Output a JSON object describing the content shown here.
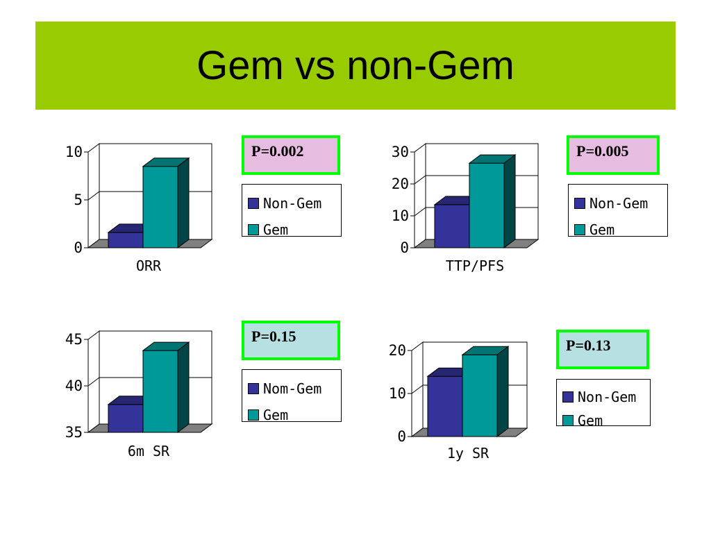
{
  "title": "Gem vs non-Gem",
  "colors": {
    "title_bg": "#99cc00",
    "nongem": "#333399",
    "gem": "#009999",
    "floor": "#808080",
    "p_border": "#00ff00"
  },
  "panels": [
    {
      "p_value": "P=0.002",
      "p_bg": "#e6bde0",
      "legend": [
        "Non-Gem",
        "Gem"
      ]
    },
    {
      "p_value": "P=0.005",
      "p_bg": "#e6bde0",
      "legend": [
        "Non-Gem",
        "Gem"
      ]
    },
    {
      "p_value": "P=0.15",
      "p_bg": "#b7e0e2",
      "legend": [
        "Nom-Gem",
        "Gem"
      ]
    },
    {
      "p_value": "P=0.13",
      "p_bg": "#b7e0e2",
      "legend": [
        "Non-Gem",
        "Gem"
      ]
    }
  ],
  "chart_data": [
    {
      "type": "bar",
      "categories": [
        "ORR"
      ],
      "ylim": [
        0,
        10
      ],
      "yticks": [
        "0",
        "5",
        "10"
      ],
      "series": [
        {
          "name": "Non-Gem",
          "values": [
            1.6
          ]
        },
        {
          "name": "Gem",
          "values": [
            8.5
          ]
        }
      ]
    },
    {
      "type": "bar",
      "categories": [
        "TTP/PFS"
      ],
      "ylim": [
        0,
        30
      ],
      "yticks": [
        "0",
        "10",
        "20",
        "30"
      ],
      "series": [
        {
          "name": "Non-Gem",
          "values": [
            13.5
          ]
        },
        {
          "name": "Gem",
          "values": [
            26.5
          ]
        }
      ]
    },
    {
      "type": "bar",
      "categories": [
        "6m SR"
      ],
      "ylim": [
        35,
        45
      ],
      "yticks": [
        "35",
        "40",
        "45"
      ],
      "series": [
        {
          "name": "Nom-Gem",
          "values": [
            38
          ]
        },
        {
          "name": "Gem",
          "values": [
            43.8
          ]
        }
      ]
    },
    {
      "type": "bar",
      "categories": [
        "1y SR"
      ],
      "ylim": [
        0,
        20
      ],
      "yticks": [
        "0",
        "10",
        "20"
      ],
      "series": [
        {
          "name": "Non-Gem",
          "values": [
            14
          ]
        },
        {
          "name": "Gem",
          "values": [
            19
          ]
        }
      ]
    }
  ]
}
